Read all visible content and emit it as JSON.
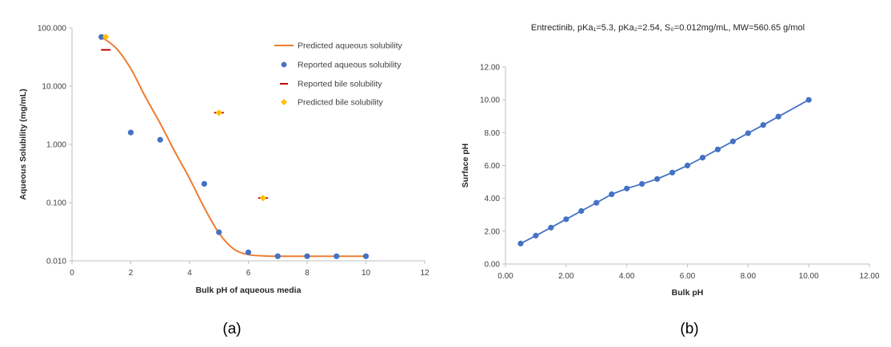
{
  "chart_data": [
    {
      "type": "scatter",
      "panel_label": "(a)",
      "title": "",
      "xlabel": "Bulk pH of aqueous media",
      "ylabel": "Aqueous Solubility (mg/mL)",
      "xlim": [
        0,
        12
      ],
      "ylim": [
        0.01,
        100
      ],
      "yscale": "log",
      "x_ticks": [
        "0",
        "2",
        "4",
        "6",
        "8",
        "10",
        "12"
      ],
      "y_ticks": [
        "0.010",
        "0.100",
        "1.000",
        "10.000",
        "100.000"
      ],
      "legend_position": "top-right",
      "series": [
        {
          "name": "Predicted aqueous solubility",
          "kind": "line",
          "color": "#ED7D31",
          "x": [
            1.0,
            1.5,
            2.0,
            2.5,
            3.0,
            3.5,
            4.0,
            4.5,
            5.0,
            5.5,
            6.0,
            6.5,
            7.0,
            8.0,
            9.0,
            10.0
          ],
          "y": [
            70,
            45,
            20,
            6.5,
            2.3,
            0.75,
            0.26,
            0.082,
            0.03,
            0.016,
            0.0128,
            0.0122,
            0.012,
            0.012,
            0.012,
            0.012
          ]
        },
        {
          "name": "Reported aqueous solubility",
          "kind": "marker-circle",
          "color": "#4472C4",
          "x": [
            1,
            2,
            3,
            4.5,
            5,
            6,
            7,
            8,
            9,
            10
          ],
          "y": [
            70,
            1.6,
            1.2,
            0.21,
            0.031,
            0.014,
            0.012,
            0.012,
            0.012,
            0.012
          ]
        },
        {
          "name": "Reported bile solubility",
          "kind": "marker-dash",
          "color": "#C00000",
          "x": [
            1.15,
            5.0,
            6.5
          ],
          "y": [
            42,
            3.5,
            0.12
          ]
        },
        {
          "name": "Predicted bile solubility",
          "kind": "marker-diamond",
          "color": "#FFC000",
          "x": [
            1.15,
            5.0,
            6.5
          ],
          "y": [
            70,
            3.5,
            0.12
          ]
        }
      ]
    },
    {
      "type": "line",
      "panel_label": "(b)",
      "title": "Entrectinib, pKa₁=5.3, pKa₂=2.54, S₀=0.012mg/mL, MW=560.65 g/mol",
      "xlabel": "Bulk pH",
      "ylabel": "Surface pH",
      "xlim": [
        0,
        12
      ],
      "ylim": [
        0,
        12
      ],
      "x_ticks": [
        "0.00",
        "2.00",
        "4.00",
        "6.00",
        "8.00",
        "10.00",
        "12.00"
      ],
      "y_ticks": [
        "0.00",
        "2.00",
        "4.00",
        "6.00",
        "8.00",
        "10.00",
        "12.00"
      ],
      "series": [
        {
          "color": "#4472C4",
          "x": [
            0.5,
            1.0,
            1.5,
            2.0,
            2.5,
            3.0,
            3.5,
            4.0,
            4.5,
            5.0,
            5.5,
            6.0,
            6.5,
            7.0,
            7.5,
            8.0,
            8.5,
            9.0,
            10.0
          ],
          "y": [
            1.25,
            1.73,
            2.22,
            2.73,
            3.23,
            3.73,
            4.25,
            4.6,
            4.88,
            5.18,
            5.57,
            6.0,
            6.48,
            6.98,
            7.47,
            7.97,
            8.47,
            8.98,
            10.0
          ]
        }
      ]
    }
  ]
}
